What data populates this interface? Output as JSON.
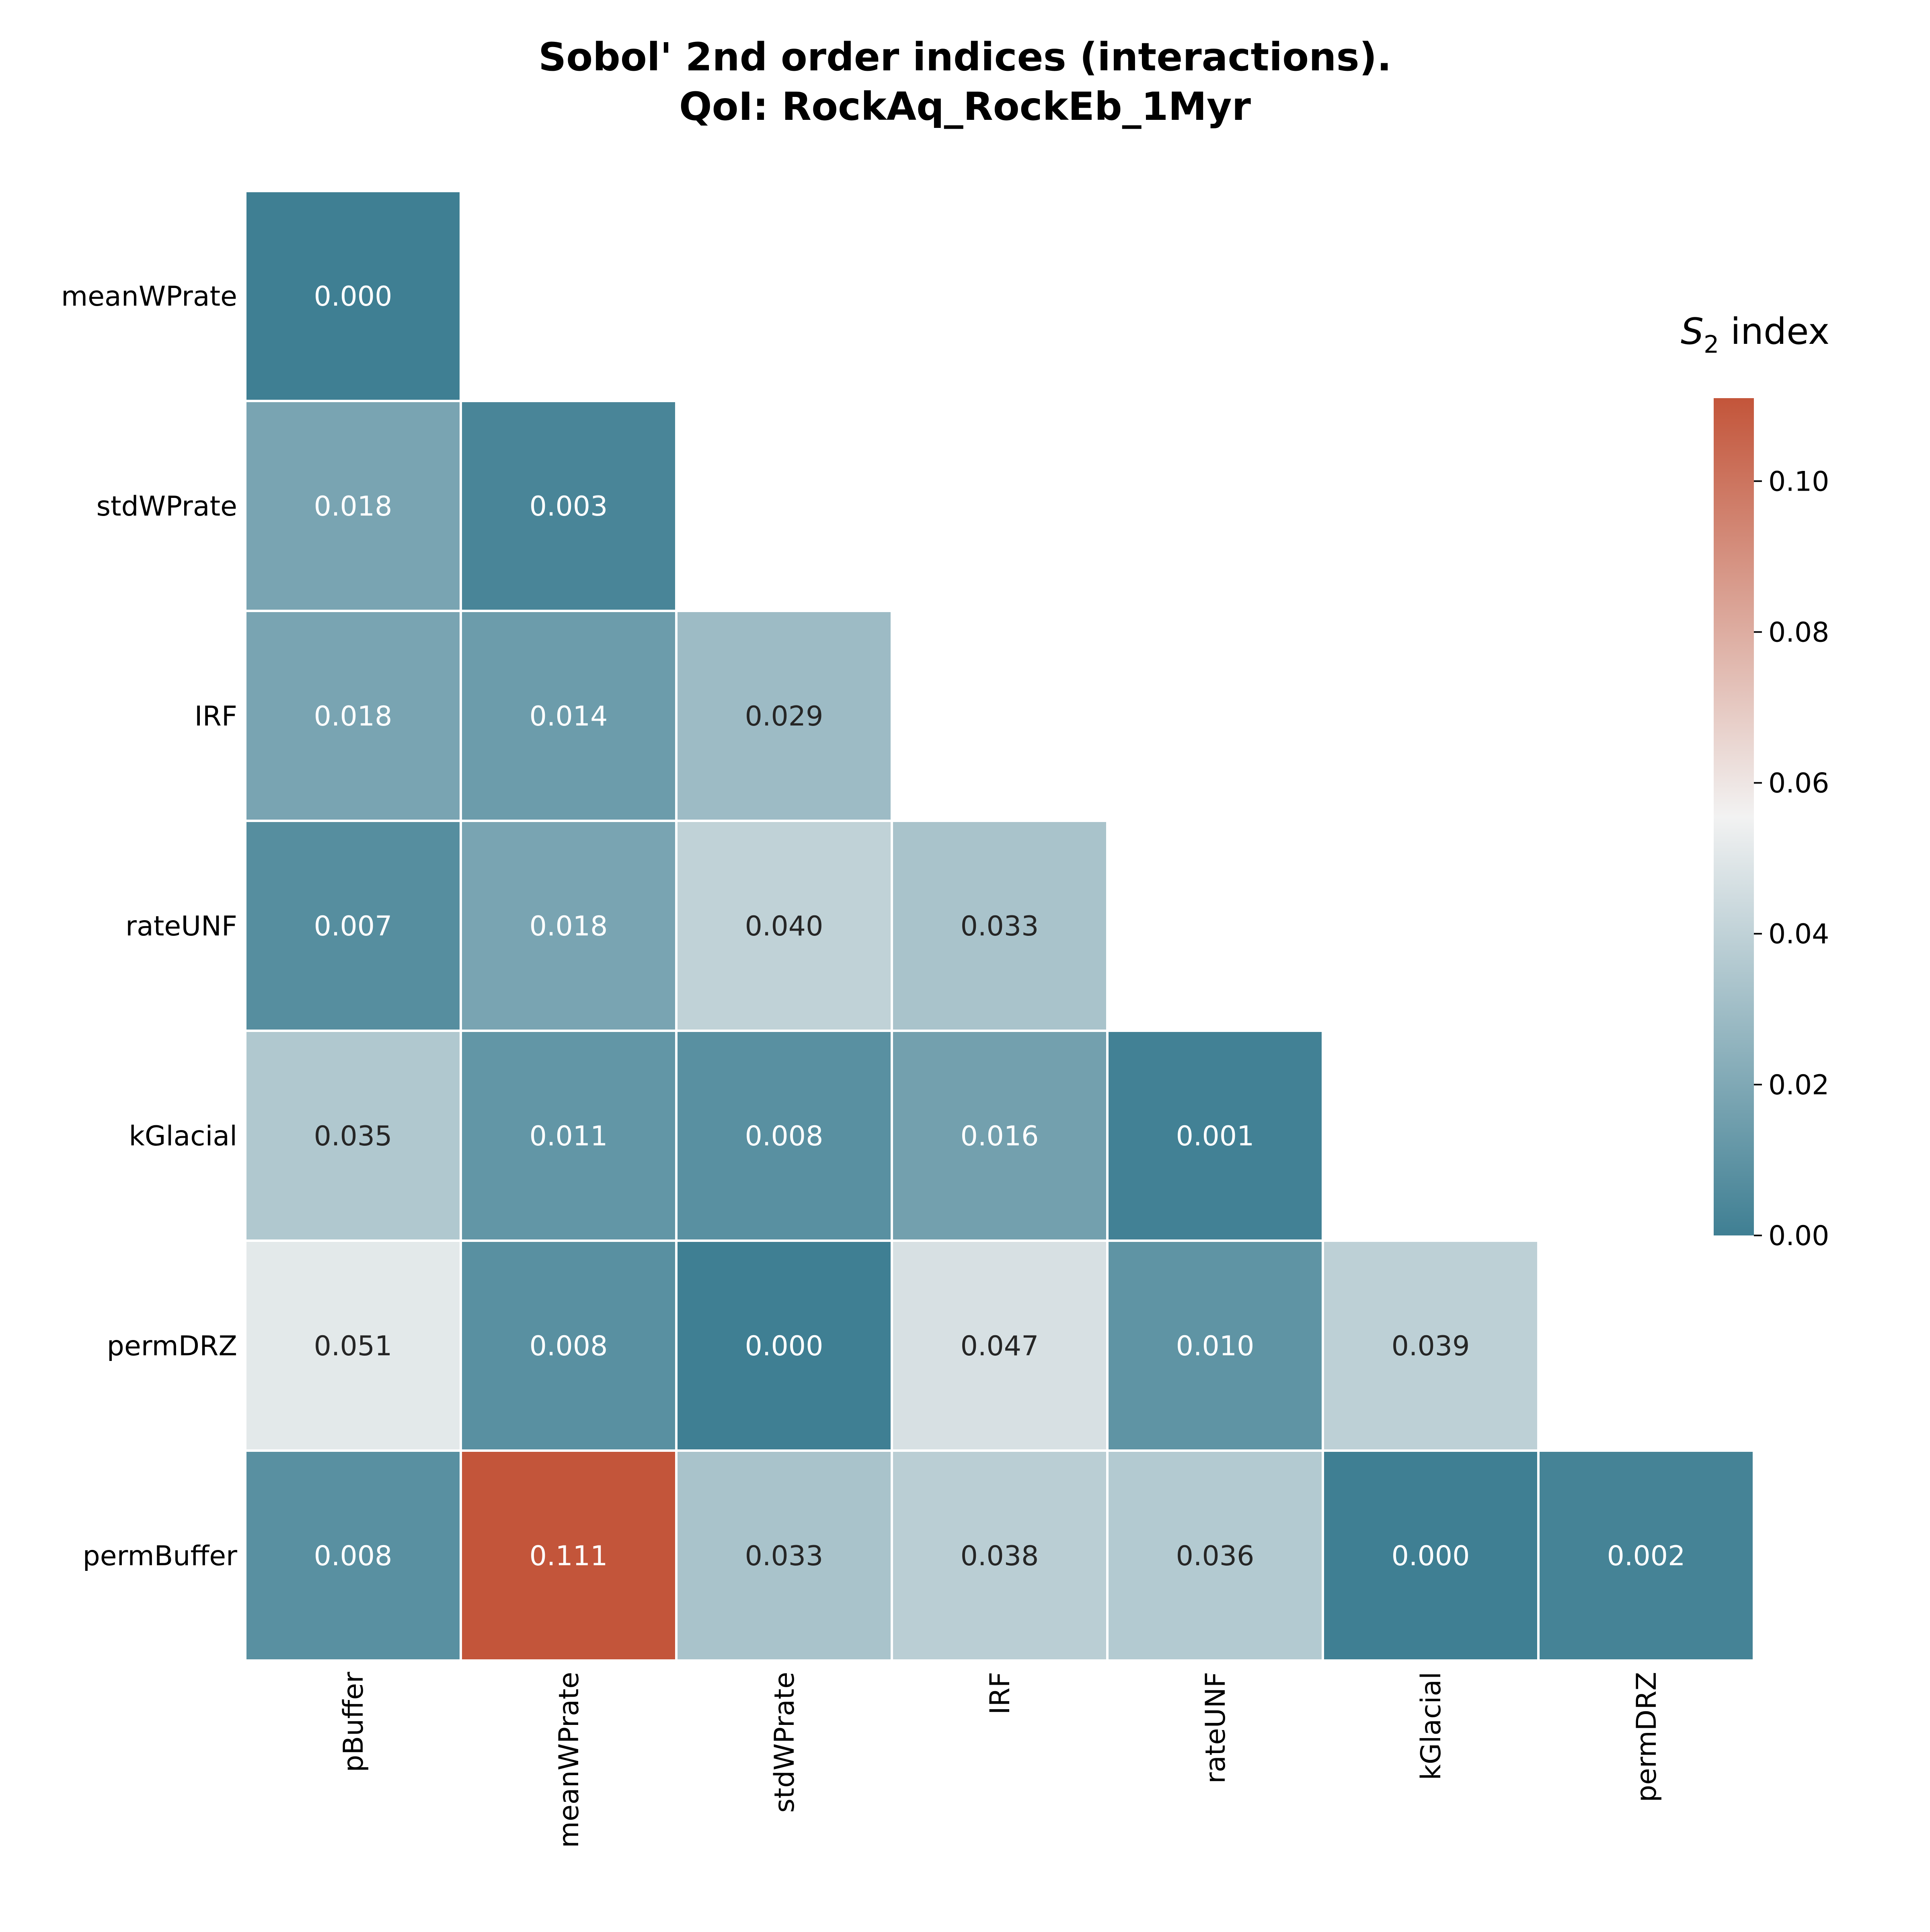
{
  "chart_data": {
    "type": "heatmap",
    "title_lines": [
      "Sobol' 2nd order indices (interactions).",
      "QoI: RockAq_RockEb_1Myr"
    ],
    "row_labels": [
      "meanWPrate",
      "stdWPrate",
      "IRF",
      "rateUNF",
      "kGlacial",
      "permDRZ",
      "permBuffer"
    ],
    "col_labels": [
      "pBuffer",
      "meanWPrate",
      "stdWPrate",
      "IRF",
      "rateUNF",
      "kGlacial",
      "permDRZ"
    ],
    "matrix": [
      [
        0.0
      ],
      [
        0.018,
        0.003
      ],
      [
        0.018,
        0.014,
        0.029
      ],
      [
        0.007,
        0.018,
        0.04,
        0.033
      ],
      [
        0.035,
        0.011,
        0.008,
        0.016,
        0.001
      ],
      [
        0.051,
        0.008,
        0.0,
        0.047,
        0.01,
        0.039
      ],
      [
        0.008,
        0.111,
        0.033,
        0.038,
        0.036,
        0.0,
        0.002
      ]
    ],
    "colorbar": {
      "title_main": "S",
      "title_sub": "2",
      "title_rest": " index",
      "vmin": 0.0,
      "vmax": 0.111,
      "ticks": [
        "0.00",
        "0.02",
        "0.04",
        "0.06",
        "0.08",
        "0.10"
      ],
      "colors": {
        "low": "#3f7f93",
        "mid": "#f2f2f2",
        "high": "#c3553a"
      }
    },
    "grid": false
  }
}
